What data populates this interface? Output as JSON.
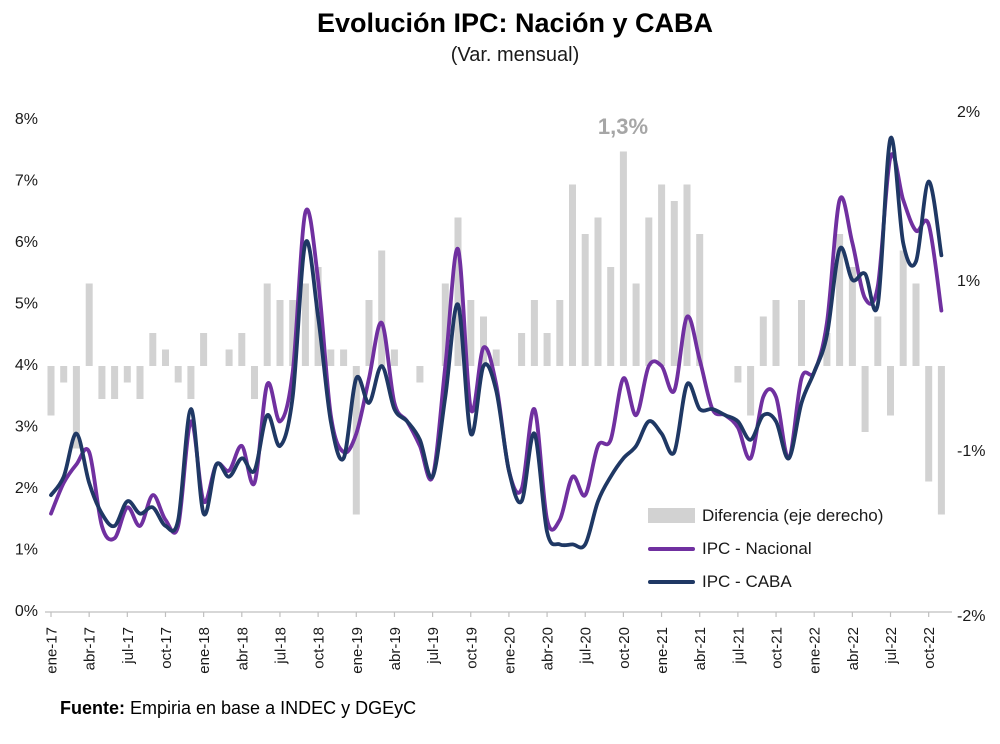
{
  "title": "Evolución IPC: Nación y CABA",
  "subtitle": "(Var. mensual)",
  "annotation": "1,3%",
  "source": {
    "label": "Fuente:",
    "text": " Empiria en base a INDEC  y DGEyC"
  },
  "legend": [
    {
      "label": "Diferencia (eje derecho)",
      "type": "bar",
      "color": "#d2d2d2"
    },
    {
      "label": "IPC - Nacional",
      "type": "line",
      "color": "#7030A0"
    },
    {
      "label": "IPC - CABA",
      "type": "line",
      "color": "#1F3864"
    }
  ],
  "chart_data": {
    "type": "line+bar combo (monthly, ene-17 to nov-22, 71 points)",
    "title": "Evolución IPC: Nación y CABA",
    "subtitle": "(Var. mensual)",
    "left_axis": {
      "tick_labels": [
        "8%",
        "7%",
        "6%",
        "5%",
        "4%",
        "3%",
        "2%",
        "1%",
        "0%"
      ],
      "range": [
        0,
        8
      ],
      "grid": false
    },
    "right_axis": {
      "tick_labels": [
        "2%",
        "1%",
        "-1%",
        "-2%"
      ],
      "range": [
        -2,
        2
      ],
      "grid": false
    },
    "x_tick_labels": [
      "ene-17",
      "abr-17",
      "jul-17",
      "oct-17",
      "ene-18",
      "abr-18",
      "jul-18",
      "oct-18",
      "ene-19",
      "abr-19",
      "jul-19",
      "oct-19",
      "ene-20",
      "abr-20",
      "jul-20",
      "oct-20",
      "ene-21",
      "abr-21",
      "jul-21",
      "oct-21",
      "ene-22",
      "abr-22",
      "jul-22",
      "oct-22"
    ],
    "series": [
      {
        "name": "IPC - Nacional",
        "axis": "left",
        "color": "#7030A0",
        "values": [
          1.6,
          2.1,
          2.4,
          2.6,
          1.4,
          1.2,
          1.7,
          1.4,
          1.9,
          1.5,
          1.4,
          3.1,
          1.8,
          2.4,
          2.3,
          2.7,
          2.1,
          3.7,
          3.1,
          3.9,
          6.5,
          5.4,
          3.2,
          2.6,
          2.9,
          3.8,
          4.7,
          3.4,
          3.1,
          2.7,
          2.2,
          4.0,
          5.9,
          3.3,
          4.3,
          3.7,
          2.3,
          2.0,
          3.3,
          1.5,
          1.5,
          2.2,
          1.9,
          2.7,
          2.8,
          3.8,
          3.2,
          4.0,
          4.0,
          3.6,
          4.8,
          4.1,
          3.3,
          3.2,
          3.0,
          2.5,
          3.5,
          3.5,
          2.5,
          3.8,
          3.9,
          4.7,
          6.7,
          6.0,
          5.1,
          5.3,
          7.4,
          6.7,
          6.2,
          6.3,
          4.9
        ]
      },
      {
        "name": "IPC - CABA",
        "axis": "left",
        "color": "#1F3864",
        "values": [
          1.9,
          2.2,
          2.9,
          2.1,
          1.6,
          1.4,
          1.8,
          1.6,
          1.7,
          1.4,
          1.5,
          3.3,
          1.6,
          2.4,
          2.2,
          2.5,
          2.3,
          3.2,
          2.7,
          3.5,
          6.0,
          4.8,
          3.1,
          2.5,
          3.8,
          3.4,
          4.0,
          3.3,
          3.1,
          2.8,
          2.2,
          3.5,
          5.0,
          2.9,
          4.0,
          3.6,
          2.3,
          1.8,
          2.9,
          1.3,
          1.1,
          1.1,
          1.1,
          1.8,
          2.2,
          2.5,
          2.7,
          3.1,
          2.9,
          2.6,
          3.7,
          3.3,
          3.3,
          3.2,
          3.1,
          2.8,
          3.2,
          3.1,
          2.5,
          3.4,
          3.9,
          4.5,
          5.9,
          5.4,
          5.5,
          5.0,
          7.7,
          6.0,
          5.7,
          7.0,
          5.8
        ]
      },
      {
        "name": "Diferencia (eje derecho)",
        "axis": "right",
        "color": "#d2d2d2",
        "derived": "nacional minus caba"
      }
    ],
    "annotation": {
      "text": "1,3%",
      "month": "oct-20",
      "value_right_axis": 1.3
    },
    "legend_position": "inside lower right"
  }
}
